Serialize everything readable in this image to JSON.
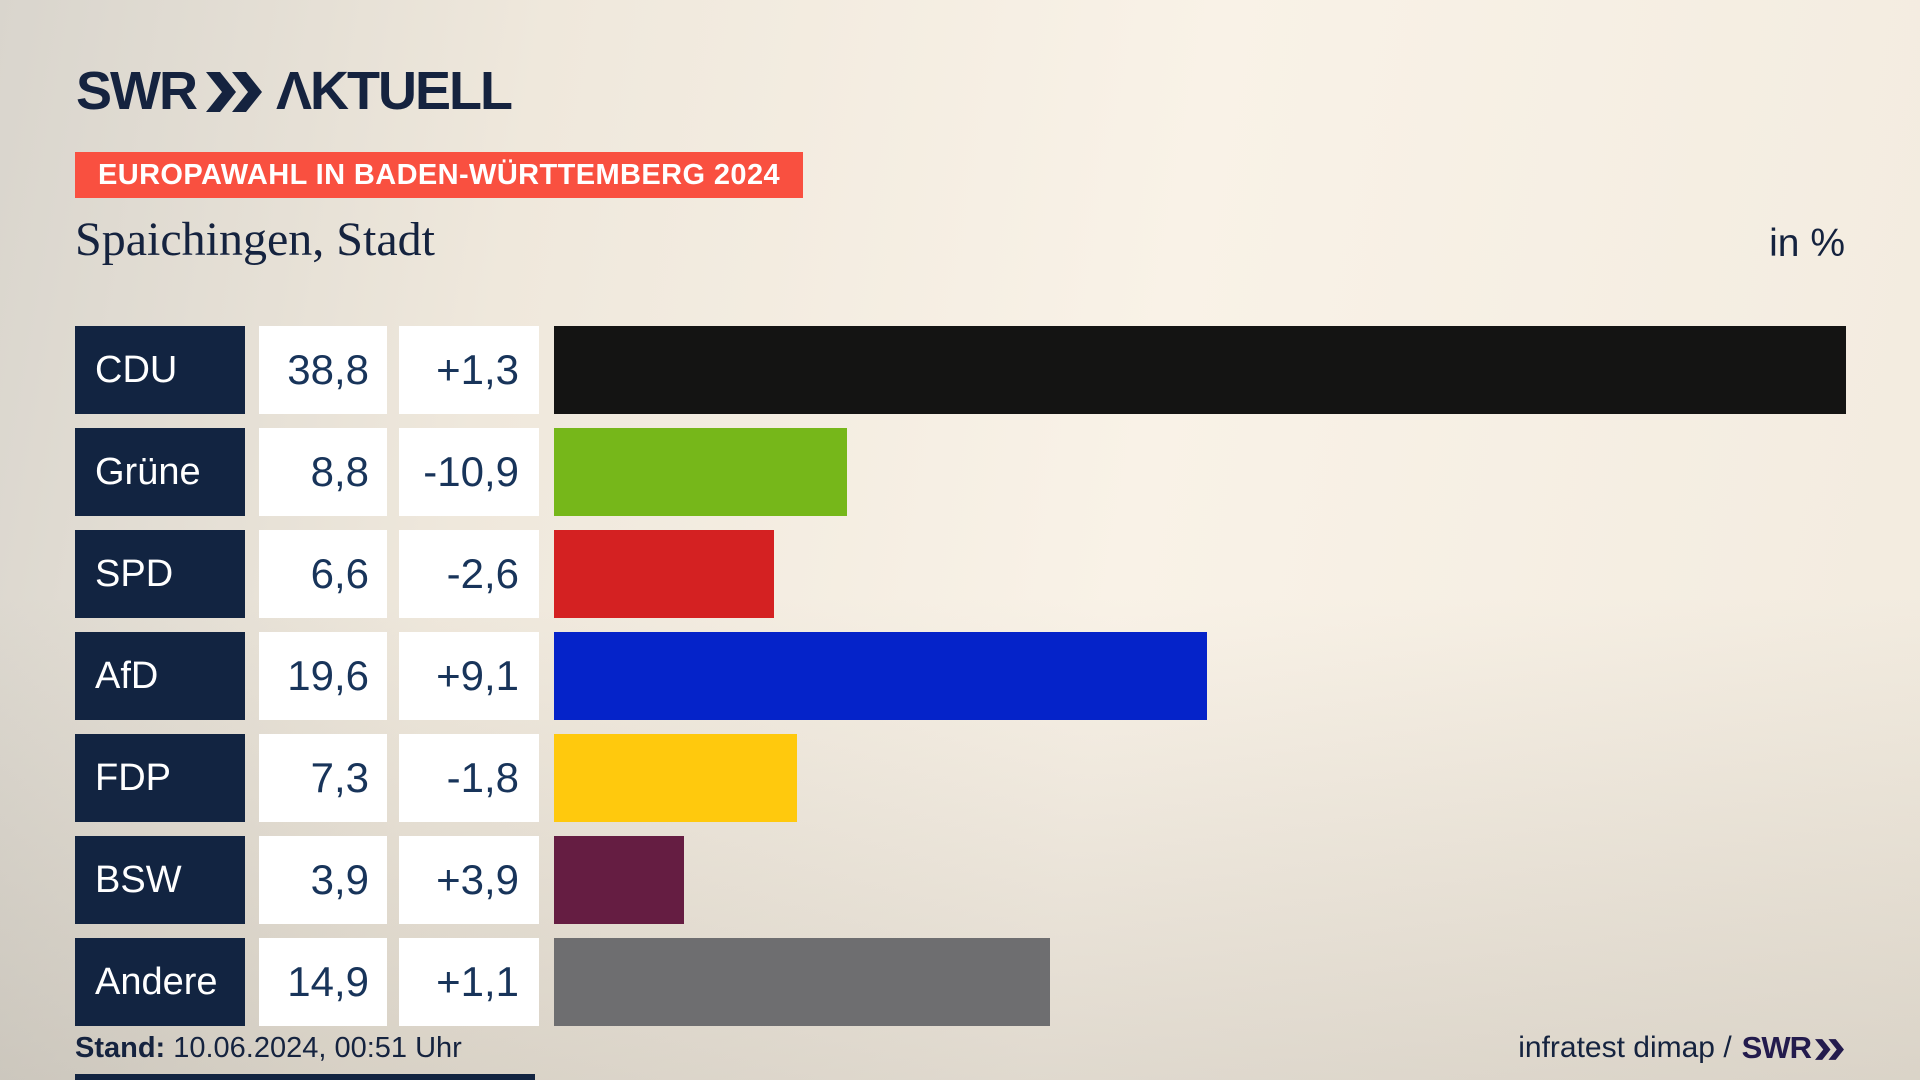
{
  "header": {
    "logo_swr": "SWR",
    "logo_aktuell": "ΛKTUELL"
  },
  "banner": {
    "label": "EUROPAWAHL IN BADEN-WÜRTTEMBERG 2024",
    "bg_color": "#f95040"
  },
  "title": {
    "region": "Spaichingen, Stadt",
    "unit": "in %"
  },
  "chart_data": {
    "type": "bar",
    "orientation": "horizontal",
    "title": "Europawahl in Baden-Württemberg 2024 — Spaichingen, Stadt",
    "unit": "%",
    "categories": [
      "CDU",
      "Grüne",
      "SPD",
      "AfD",
      "FDP",
      "BSW",
      "Andere"
    ],
    "values": [
      38.8,
      8.8,
      6.6,
      19.6,
      7.3,
      3.9,
      14.9
    ],
    "changes": [
      1.3,
      -10.9,
      -2.6,
      9.1,
      -1.8,
      3.9,
      1.1
    ],
    "value_labels": [
      "38,8",
      "8,8",
      "6,6",
      "19,6",
      "7,3",
      "3,9",
      "14,9"
    ],
    "change_labels": [
      "+1,3",
      "-10,9",
      "-2,6",
      "+9,1",
      "-1,8",
      "+3,9",
      "+1,1"
    ],
    "bar_colors": [
      "#141413",
      "#76b71a",
      "#d42122",
      "#0523c9",
      "#ffc90d",
      "#651d42",
      "#6e6e70"
    ],
    "xlim": [
      0,
      38.8
    ],
    "grid": false,
    "legend": false
  },
  "footer": {
    "stand_label": "Stand:",
    "stand_value": "10.06.2024, 00:51 Uhr",
    "source_text": "infratest dimap /",
    "source_logo": "SWR"
  },
  "colors": {
    "navy": "#122441",
    "text_navy": "#15233f",
    "number_navy": "#18345a",
    "background_cream": "#f9f2e7",
    "background_gray": "#d9d5cd",
    "banner_red": "#f95040",
    "cell_white": "#ffffff"
  }
}
